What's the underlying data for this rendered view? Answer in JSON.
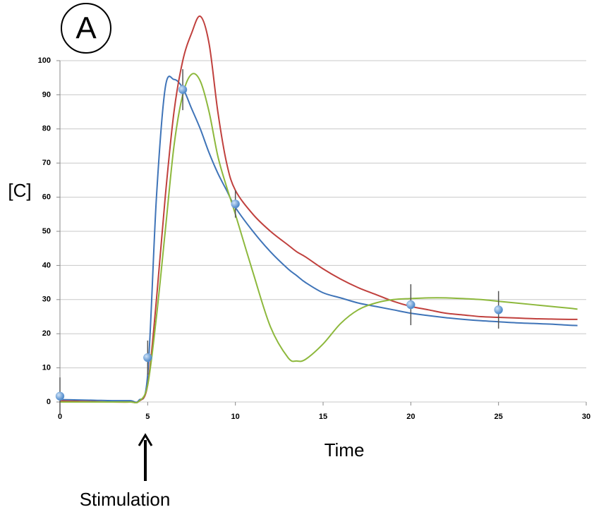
{
  "chart_data": {
    "type": "line",
    "panel_label": "A",
    "ylabel": "[C]",
    "xlabel": "Time",
    "annotation": "Stimulation",
    "xlim": [
      0,
      30
    ],
    "ylim": [
      0,
      100
    ],
    "xticks": [
      0,
      5,
      10,
      15,
      20,
      25,
      30
    ],
    "yticks": [
      0,
      10,
      20,
      30,
      40,
      50,
      60,
      70,
      80,
      90,
      100
    ],
    "grid": true,
    "x": [
      0,
      1,
      2,
      3,
      4,
      4.5,
      5,
      5.5,
      6,
      6.5,
      7,
      7.5,
      8,
      8.5,
      9,
      9.5,
      10,
      11,
      12,
      13,
      13.5,
      14,
      15,
      16,
      17,
      18,
      19,
      20,
      21,
      22,
      23,
      24,
      25,
      26,
      27,
      28,
      29,
      29.5
    ],
    "series": [
      {
        "color": "#3f74b8",
        "values": [
          0.7,
          0.6,
          0.5,
          0.4,
          0.4,
          0.5,
          8,
          60,
          92,
          94.5,
          92,
          86,
          80,
          73,
          67,
          62,
          57,
          50,
          44,
          39,
          37,
          35,
          32,
          30.5,
          29,
          28,
          27,
          26,
          25.3,
          24.7,
          24.2,
          23.8,
          23.5,
          23.2,
          23,
          22.8,
          22.5,
          22.4
        ]
      },
      {
        "color": "#c0403d",
        "values": [
          0.3,
          0.2,
          0.1,
          0,
          0,
          0.2,
          5,
          30,
          60,
          85,
          100,
          108,
          113,
          105,
          85,
          70,
          62,
          55,
          50,
          46,
          44,
          42.5,
          39,
          36,
          33.5,
          31.5,
          29.5,
          28,
          27,
          26,
          25.5,
          25,
          24.8,
          24.6,
          24.4,
          24.3,
          24.2,
          24.2
        ]
      },
      {
        "color": "#8db83c",
        "values": [
          0,
          0,
          0,
          0,
          0,
          0.2,
          5,
          25,
          50,
          75,
          90,
          96,
          94,
          85,
          72,
          63,
          55,
          38,
          22,
          13,
          12,
          12.5,
          17,
          23,
          27,
          29,
          30,
          30.3,
          30.5,
          30.5,
          30.3,
          30,
          29.5,
          29,
          28.5,
          28,
          27.5,
          27.2
        ]
      }
    ],
    "points": {
      "type": "scatter",
      "color": "#6fa4dc",
      "x": [
        0,
        5,
        7,
        10,
        20,
        25
      ],
      "values": [
        1.7,
        13,
        91.5,
        58,
        28.5,
        27
      ],
      "errors": [
        5.5,
        5,
        6,
        4,
        6,
        5.5
      ]
    }
  }
}
